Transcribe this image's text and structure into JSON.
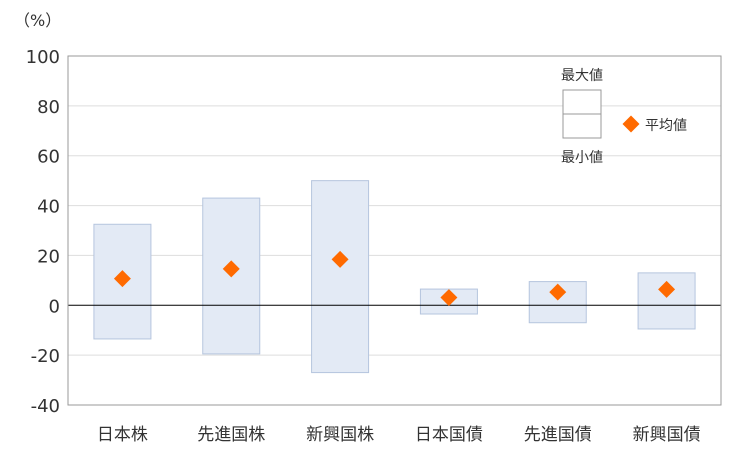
{
  "chart_data": {
    "type": "range-bar",
    "unit_label": "（%）",
    "categories": [
      "日本株",
      "先進国株",
      "新興国株",
      "日本国債",
      "先進国債",
      "新興国債"
    ],
    "series": [
      {
        "name": "最大値",
        "values": [
          32.5,
          43,
          50,
          6.5,
          9.5,
          13
        ]
      },
      {
        "name": "最小値",
        "values": [
          -13.5,
          -19.5,
          -27,
          -3.5,
          -7,
          -9.5
        ]
      },
      {
        "name": "平均値",
        "values": [
          10.7,
          14.6,
          18.4,
          3.1,
          5.3,
          6.4
        ]
      }
    ],
    "ylim": [
      -40,
      100
    ],
    "yticks": [
      -40,
      -20,
      0,
      20,
      40,
      60,
      80,
      100
    ],
    "grid": true,
    "legend_position": "top-right",
    "colors": {
      "range_fill": "#e3eaf5",
      "range_stroke": "#b5c5de",
      "marker": "#ff6a00",
      "grid": "#dddddd",
      "zero_line": "#000000",
      "frame": "#999999"
    }
  }
}
